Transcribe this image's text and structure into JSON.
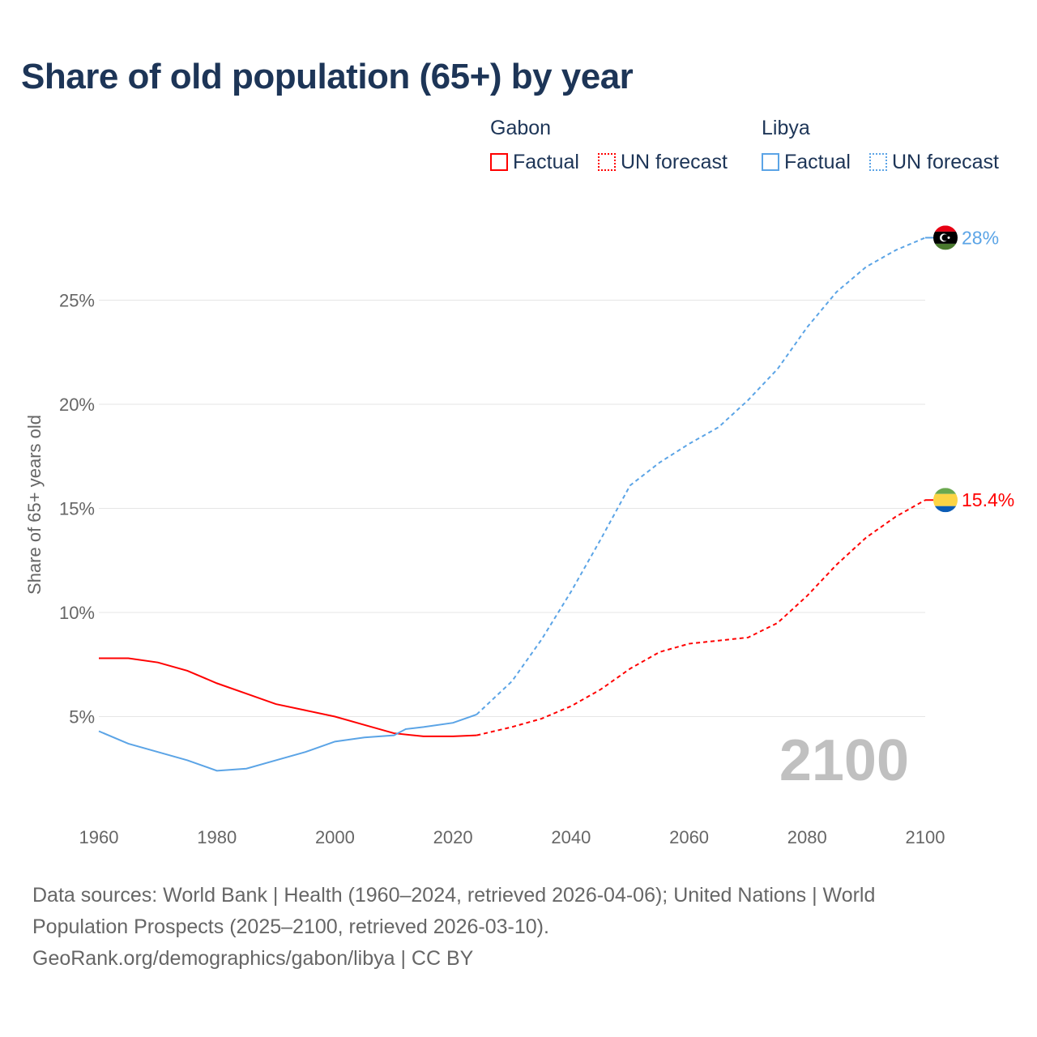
{
  "title": "Share of old population (65+) by year",
  "legend": {
    "groups": [
      {
        "name": "Gabon",
        "color": "#ff0000",
        "factual": "Factual",
        "forecast": "UN forecast"
      },
      {
        "name": "Libya",
        "color": "#5ba4e6",
        "factual": "Factual",
        "forecast": "UN forecast"
      }
    ]
  },
  "year_label": "2100",
  "source_lines": [
    "Data sources: World Bank | Health (1960–2024, retrieved 2026-04-06); United Nations | World",
    "Population Prospects (2025–2100, retrieved 2026-03-10).",
    "GeoRank.org/demographics/gabon/libya | CC BY"
  ],
  "chart_data": {
    "type": "line",
    "title": "Share of old population (65+) by year",
    "xlabel": "",
    "ylabel": "Share of 65+ years old",
    "xlim": [
      1960,
      2100
    ],
    "ylim": [
      0,
      28
    ],
    "xticks": [
      "1960",
      "1980",
      "2000",
      "2020",
      "2040",
      "2060",
      "2080",
      "2100"
    ],
    "yticks": [
      "5%",
      "10%",
      "15%",
      "20%",
      "25%"
    ],
    "grid": true,
    "factual_end": 2024,
    "series": [
      {
        "name": "Gabon",
        "color": "#ff0000",
        "end_label": "15.4%",
        "x": [
          1960,
          1965,
          1970,
          1975,
          1980,
          1985,
          1990,
          1995,
          2000,
          2005,
          2010,
          2015,
          2020,
          2024,
          2030,
          2035,
          2040,
          2045,
          2050,
          2055,
          2060,
          2065,
          2070,
          2075,
          2080,
          2085,
          2090,
          2095,
          2100
        ],
        "y": [
          7.8,
          7.8,
          7.6,
          7.2,
          6.6,
          6.1,
          5.6,
          5.3,
          5.0,
          4.6,
          4.2,
          4.05,
          4.05,
          4.1,
          4.5,
          4.9,
          5.5,
          6.3,
          7.3,
          8.1,
          8.5,
          8.65,
          8.8,
          9.5,
          10.8,
          12.3,
          13.6,
          14.6,
          15.4
        ]
      },
      {
        "name": "Libya",
        "color": "#5ba4e6",
        "end_label": "28%",
        "x": [
          1960,
          1965,
          1970,
          1975,
          1980,
          1985,
          1990,
          1995,
          2000,
          2005,
          2010,
          2012,
          2015,
          2020,
          2024,
          2030,
          2035,
          2040,
          2045,
          2050,
          2055,
          2060,
          2065,
          2070,
          2075,
          2080,
          2085,
          2090,
          2095,
          2100
        ],
        "y": [
          4.3,
          3.7,
          3.3,
          2.9,
          2.4,
          2.5,
          2.9,
          3.3,
          3.8,
          4.0,
          4.1,
          4.4,
          4.5,
          4.7,
          5.1,
          6.7,
          8.7,
          11.0,
          13.5,
          16.1,
          17.2,
          18.1,
          18.9,
          20.2,
          21.7,
          23.7,
          25.4,
          26.6,
          27.4,
          28.0
        ]
      }
    ]
  }
}
